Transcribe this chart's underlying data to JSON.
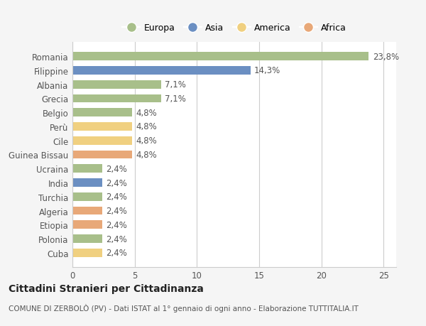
{
  "categories": [
    "Romania",
    "Filippine",
    "Albania",
    "Grecia",
    "Belgio",
    "Perù",
    "Cile",
    "Guinea Bissau",
    "Ucraina",
    "India",
    "Turchia",
    "Algeria",
    "Etiopia",
    "Polonia",
    "Cuba"
  ],
  "values": [
    23.8,
    14.3,
    7.1,
    7.1,
    4.8,
    4.8,
    4.8,
    4.8,
    2.4,
    2.4,
    2.4,
    2.4,
    2.4,
    2.4,
    2.4
  ],
  "labels": [
    "23,8%",
    "14,3%",
    "7,1%",
    "7,1%",
    "4,8%",
    "4,8%",
    "4,8%",
    "4,8%",
    "2,4%",
    "2,4%",
    "2,4%",
    "2,4%",
    "2,4%",
    "2,4%",
    "2,4%"
  ],
  "colors": [
    "#a8bf8a",
    "#6b8fc2",
    "#a8bf8a",
    "#a8bf8a",
    "#a8bf8a",
    "#f0d080",
    "#f0d080",
    "#e8a878",
    "#a8bf8a",
    "#6b8fc2",
    "#a8bf8a",
    "#e8a878",
    "#e8a878",
    "#a8bf8a",
    "#f0d080"
  ],
  "legend": {
    "Europa": "#a8bf8a",
    "Asia": "#6b8fc2",
    "America": "#f0d080",
    "Africa": "#e8a878"
  },
  "xlim": [
    0,
    26
  ],
  "xticks": [
    0,
    5,
    10,
    15,
    20,
    25
  ],
  "title": "Cittadini Stranieri per Cittadinanza",
  "subtitle": "COMUNE DI ZERBOLÒ (PV) - Dati ISTAT al 1° gennaio di ogni anno - Elaborazione TUTTITALIA.IT",
  "bg_color": "#f5f5f5",
  "bar_bg_color": "#ffffff",
  "grid_color": "#cccccc",
  "label_fontsize": 8.5,
  "tick_fontsize": 8.5,
  "value_fontsize": 8.5,
  "title_fontsize": 10,
  "subtitle_fontsize": 7.5,
  "legend_fontsize": 9
}
